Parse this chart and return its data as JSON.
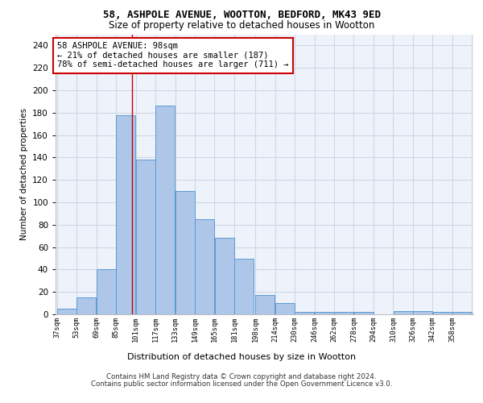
{
  "title1": "58, ASHPOLE AVENUE, WOOTTON, BEDFORD, MK43 9ED",
  "title2": "Size of property relative to detached houses in Wootton",
  "xlabel": "Distribution of detached houses by size in Wootton",
  "ylabel": "Number of detached properties",
  "footer1": "Contains HM Land Registry data © Crown copyright and database right 2024.",
  "footer2": "Contains public sector information licensed under the Open Government Licence v3.0.",
  "annotation_line1": "58 ASHPOLE AVENUE: 98sqm",
  "annotation_line2": "← 21% of detached houses are smaller (187)",
  "annotation_line3": "78% of semi-detached houses are larger (711) →",
  "property_value": 98,
  "bar_left_edges": [
    37,
    53,
    69,
    85,
    101,
    117,
    133,
    149,
    165,
    181,
    198,
    214,
    230,
    246,
    262,
    278,
    294,
    310,
    326,
    342,
    358
  ],
  "bar_widths": [
    16,
    16,
    16,
    16,
    16,
    16,
    16,
    16,
    16,
    16,
    16,
    16,
    16,
    16,
    16,
    16,
    16,
    16,
    16,
    16,
    16
  ],
  "bar_heights": [
    5,
    15,
    40,
    178,
    138,
    186,
    110,
    85,
    68,
    50,
    17,
    10,
    2,
    2,
    2,
    2,
    0,
    3,
    3,
    2,
    2
  ],
  "tick_labels": [
    "37sqm",
    "53sqm",
    "69sqm",
    "85sqm",
    "101sqm",
    "117sqm",
    "133sqm",
    "149sqm",
    "165sqm",
    "181sqm",
    "198sqm",
    "214sqm",
    "230sqm",
    "246sqm",
    "262sqm",
    "278sqm",
    "294sqm",
    "310sqm",
    "326sqm",
    "342sqm",
    "358sqm"
  ],
  "bar_color": "#aec6e8",
  "bar_edge_color": "#5b9bd5",
  "grid_color": "#d0d8e4",
  "annotation_box_color": "#cc0000",
  "vline_color": "#cc0000",
  "bg_color": "#eef2fa",
  "ylim": [
    0,
    250
  ],
  "yticks": [
    0,
    20,
    40,
    60,
    80,
    100,
    120,
    140,
    160,
    180,
    200,
    220,
    240
  ]
}
